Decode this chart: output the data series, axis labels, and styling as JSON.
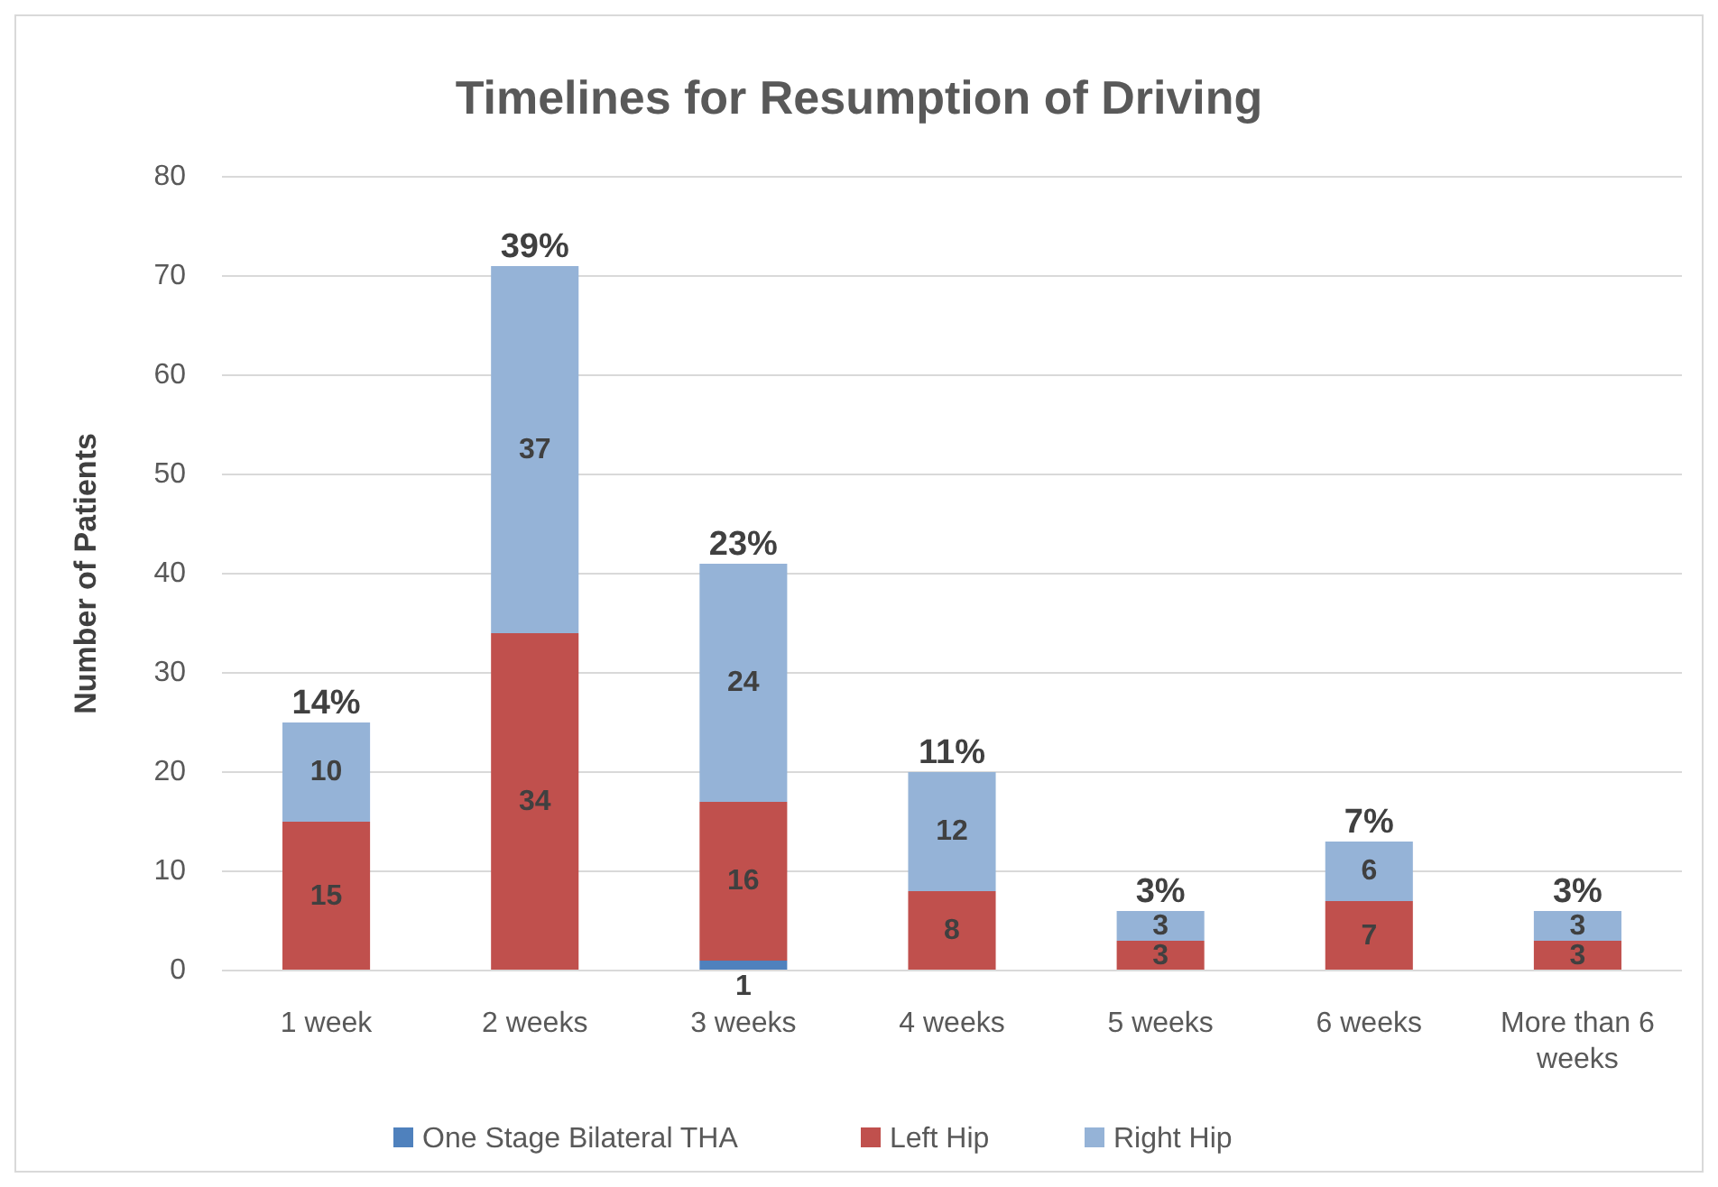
{
  "chart_data": {
    "type": "bar",
    "title": "Timelines for Resumption of Driving",
    "ylabel": "Number of Patients",
    "categories": [
      "1 week",
      "2 weeks",
      "3 weeks",
      "4 weeks",
      "5 weeks",
      "6 weeks",
      "More than 6 weeks"
    ],
    "stacked": true,
    "series": [
      {
        "name": "One Stage Bilateral THA",
        "color": "#4f81bd",
        "values": [
          0,
          0,
          1,
          0,
          0,
          0,
          0
        ],
        "value_labels": [
          null,
          null,
          "1",
          null,
          null,
          null,
          null
        ]
      },
      {
        "name": "Left Hip",
        "color": "#c0504d",
        "values": [
          15,
          34,
          16,
          8,
          3,
          7,
          3
        ],
        "value_labels": [
          "15",
          "34",
          "16",
          "8",
          "3",
          "7",
          "3"
        ]
      },
      {
        "name": "Right Hip",
        "color": "#95b3d7",
        "values": [
          10,
          37,
          24,
          12,
          3,
          6,
          3
        ],
        "value_labels": [
          "10",
          "37",
          "24",
          "12",
          "3",
          "6",
          "3"
        ]
      }
    ],
    "annotations": [
      {
        "text": "14%",
        "x": "1 week",
        "y": 25
      },
      {
        "text": "39%",
        "x": "2 weeks",
        "y": 71
      },
      {
        "text": "23%",
        "x": "3 weeks",
        "y": 41
      },
      {
        "text": "11%",
        "x": "4 weeks",
        "y": 20
      },
      {
        "text": "3%",
        "x": "5 weeks",
        "y": 6
      },
      {
        "text": "7%",
        "x": "6 weeks",
        "y": 13
      },
      {
        "text": "3%",
        "x": "More than 6 weeks",
        "y": 6
      }
    ],
    "ylim": [
      0,
      80
    ],
    "yticks": [
      0,
      10,
      20,
      30,
      40,
      50,
      60,
      70,
      80
    ],
    "grid": "y",
    "legend": "bottom"
  }
}
